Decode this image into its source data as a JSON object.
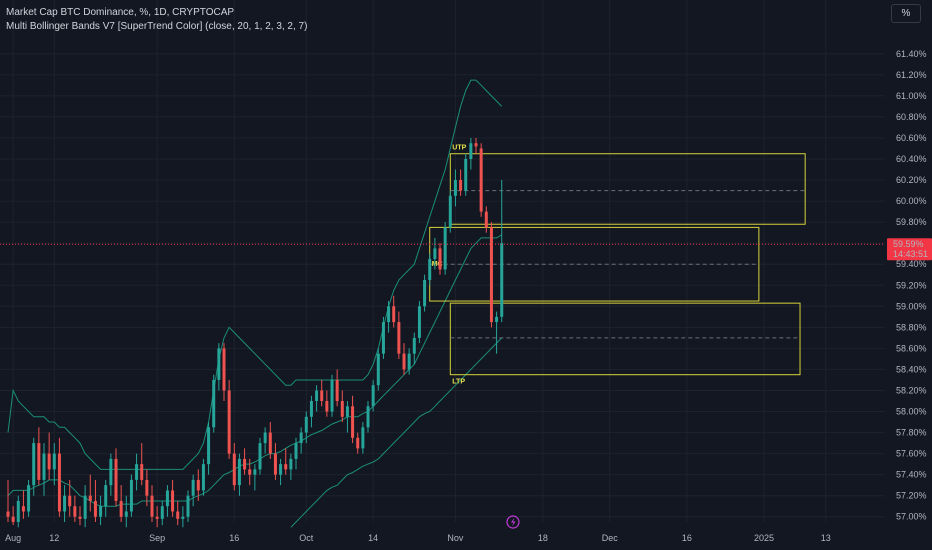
{
  "header": {
    "title": "Market Cap BTC Dominance, %, 1D, CRYPTOCAP",
    "indicator": "Multi Bollinger Bands V7 [SuperTrend Color] (close, 20, 1, 2, 3, 2, 7)",
    "scale_button": "%"
  },
  "colors": {
    "background": "#131722",
    "up": "#26a69a",
    "down": "#ef5350",
    "band": "#1b8f78",
    "zone": "#d8d33a",
    "price_marker": "#f23645",
    "axis_text": "#b2b5be"
  },
  "chart_data": {
    "type": "candlestick",
    "symbol": "Market Cap BTC Dominance",
    "interval": "1D",
    "ylim": [
      56.95,
      61.55
    ],
    "y_ticks": [
      "61.40%",
      "61.20%",
      "61.00%",
      "60.80%",
      "60.60%",
      "60.40%",
      "60.20%",
      "60.00%",
      "59.80%",
      "59.60%",
      "59.40%",
      "59.20%",
      "59.00%",
      "58.80%",
      "58.60%",
      "58.40%",
      "58.20%",
      "58.00%",
      "57.80%",
      "57.60%",
      "57.40%",
      "57.20%",
      "57.00%"
    ],
    "x_ticks": [
      {
        "label": "Aug",
        "i": 1
      },
      {
        "label": "12",
        "i": 9
      },
      {
        "label": "Sep",
        "i": 29
      },
      {
        "label": "16",
        "i": 44
      },
      {
        "label": "Oct",
        "i": 58
      },
      {
        "label": "14",
        "i": 71
      },
      {
        "label": "Nov",
        "i": 87
      },
      {
        "label": "18",
        "i": 104
      },
      {
        "label": "Dec",
        "i": 117
      },
      {
        "label": "16",
        "i": 132
      },
      {
        "label": "2025",
        "i": 147
      },
      {
        "label": "13",
        "i": 159
      }
    ],
    "candles": [
      [
        57.05,
        57.35,
        56.95,
        57.0
      ],
      [
        57.0,
        57.1,
        56.92,
        56.95
      ],
      [
        56.95,
        57.2,
        56.9,
        57.15
      ],
      [
        57.1,
        57.25,
        56.98,
        57.05
      ],
      [
        57.05,
        57.35,
        57.0,
        57.3
      ],
      [
        57.3,
        57.75,
        57.2,
        57.7
      ],
      [
        57.7,
        57.85,
        57.3,
        57.35
      ],
      [
        57.35,
        57.7,
        57.2,
        57.6
      ],
      [
        57.6,
        57.8,
        57.35,
        57.45
      ],
      [
        57.45,
        57.7,
        57.3,
        57.6
      ],
      [
        57.6,
        57.75,
        57.0,
        57.05
      ],
      [
        57.05,
        57.3,
        56.95,
        57.2
      ],
      [
        57.2,
        57.35,
        57.0,
        57.1
      ],
      [
        57.1,
        57.2,
        56.95,
        57.0
      ],
      [
        57.0,
        57.1,
        56.92,
        56.98
      ],
      [
        56.98,
        57.3,
        56.9,
        57.2
      ],
      [
        57.2,
        57.4,
        57.05,
        57.15
      ],
      [
        57.15,
        57.35,
        56.95,
        57.0
      ],
      [
        57.0,
        57.2,
        56.92,
        57.1
      ],
      [
        57.1,
        57.35,
        57.0,
        57.3
      ],
      [
        57.3,
        57.6,
        57.2,
        57.55
      ],
      [
        57.55,
        57.65,
        57.1,
        57.15
      ],
      [
        57.15,
        57.3,
        56.95,
        57.0
      ],
      [
        57.0,
        57.2,
        56.9,
        57.05
      ],
      [
        57.05,
        57.4,
        57.0,
        57.35
      ],
      [
        57.35,
        57.6,
        57.25,
        57.5
      ],
      [
        57.5,
        57.7,
        57.3,
        57.35
      ],
      [
        57.35,
        57.45,
        57.1,
        57.2
      ],
      [
        57.2,
        57.3,
        56.95,
        57.0
      ],
      [
        57.0,
        57.1,
        56.9,
        56.98
      ],
      [
        56.98,
        57.15,
        56.92,
        57.1
      ],
      [
        57.1,
        57.3,
        57.0,
        57.25
      ],
      [
        57.25,
        57.35,
        57.0,
        57.05
      ],
      [
        57.05,
        57.15,
        56.92,
        56.98
      ],
      [
        56.98,
        57.1,
        56.9,
        57.0
      ],
      [
        57.0,
        57.25,
        56.95,
        57.2
      ],
      [
        57.2,
        57.4,
        57.1,
        57.35
      ],
      [
        57.35,
        57.45,
        57.15,
        57.25
      ],
      [
        57.25,
        57.55,
        57.2,
        57.5
      ],
      [
        57.5,
        57.9,
        57.4,
        57.85
      ],
      [
        57.85,
        58.35,
        57.8,
        58.3
      ],
      [
        58.3,
        58.65,
        58.2,
        58.6
      ],
      [
        58.6,
        58.65,
        58.1,
        58.2
      ],
      [
        58.2,
        58.3,
        57.55,
        57.6
      ],
      [
        57.6,
        57.7,
        57.25,
        57.3
      ],
      [
        57.3,
        57.6,
        57.2,
        57.55
      ],
      [
        57.55,
        57.65,
        57.4,
        57.45
      ],
      [
        57.45,
        57.55,
        57.3,
        57.4
      ],
      [
        57.4,
        57.5,
        57.25,
        57.45
      ],
      [
        57.45,
        57.75,
        57.4,
        57.7
      ],
      [
        57.7,
        57.85,
        57.6,
        57.8
      ],
      [
        57.8,
        57.9,
        57.55,
        57.6
      ],
      [
        57.6,
        57.7,
        57.35,
        57.4
      ],
      [
        57.4,
        57.55,
        57.3,
        57.5
      ],
      [
        57.5,
        57.65,
        57.4,
        57.45
      ],
      [
        57.45,
        57.6,
        57.35,
        57.55
      ],
      [
        57.55,
        57.75,
        57.45,
        57.7
      ],
      [
        57.7,
        57.85,
        57.6,
        57.8
      ],
      [
        57.8,
        58.0,
        57.7,
        57.95
      ],
      [
        57.95,
        58.15,
        57.85,
        58.1
      ],
      [
        58.1,
        58.25,
        58.0,
        58.2
      ],
      [
        58.2,
        58.3,
        58.05,
        58.1
      ],
      [
        58.1,
        58.2,
        57.95,
        58.0
      ],
      [
        58.0,
        58.35,
        57.95,
        58.3
      ],
      [
        58.3,
        58.4,
        58.05,
        58.1
      ],
      [
        58.1,
        58.2,
        57.9,
        57.95
      ],
      [
        57.95,
        58.1,
        57.8,
        58.05
      ],
      [
        58.05,
        58.15,
        57.7,
        57.75
      ],
      [
        57.75,
        57.8,
        57.6,
        57.65
      ],
      [
        57.65,
        57.9,
        57.6,
        57.85
      ],
      [
        57.85,
        58.1,
        57.8,
        58.05
      ],
      [
        58.05,
        58.3,
        58.0,
        58.25
      ],
      [
        58.25,
        58.6,
        58.2,
        58.55
      ],
      [
        58.55,
        58.9,
        58.5,
        58.85
      ],
      [
        58.85,
        59.05,
        58.75,
        59.0
      ],
      [
        59.0,
        59.1,
        58.8,
        58.85
      ],
      [
        58.85,
        58.95,
        58.5,
        58.55
      ],
      [
        58.55,
        58.65,
        58.35,
        58.4
      ],
      [
        58.4,
        58.6,
        58.35,
        58.55
      ],
      [
        58.55,
        58.75,
        58.45,
        58.7
      ],
      [
        58.7,
        59.05,
        58.65,
        59.0
      ],
      [
        59.0,
        59.3,
        58.95,
        59.25
      ],
      [
        59.25,
        59.5,
        59.2,
        59.45
      ],
      [
        59.45,
        59.65,
        59.35,
        59.55
      ],
      [
        59.55,
        59.6,
        59.3,
        59.35
      ],
      [
        59.35,
        59.8,
        59.3,
        59.75
      ],
      [
        59.75,
        60.1,
        59.7,
        60.05
      ],
      [
        60.05,
        60.3,
        59.95,
        60.2
      ],
      [
        60.2,
        60.3,
        60.05,
        60.1
      ],
      [
        60.1,
        60.45,
        60.05,
        60.4
      ],
      [
        60.4,
        60.6,
        60.3,
        60.55
      ],
      [
        60.55,
        60.6,
        60.45,
        60.52
      ],
      [
        60.5,
        60.55,
        59.85,
        59.9
      ],
      [
        59.9,
        59.95,
        59.7,
        59.75
      ],
      [
        59.75,
        59.8,
        58.8,
        58.85
      ],
      [
        58.85,
        58.95,
        58.55,
        58.9
      ],
      [
        58.9,
        60.2,
        58.85,
        59.6
      ]
    ],
    "bands": {
      "upper": [
        57.8,
        58.2,
        58.1,
        58.05,
        58.0,
        57.95,
        57.95,
        57.95,
        57.9,
        57.9,
        57.85,
        57.85,
        57.8,
        57.75,
        57.7,
        57.6,
        57.55,
        57.5,
        57.45,
        57.45,
        57.45,
        57.45,
        57.45,
        57.45,
        57.45,
        57.45,
        57.45,
        57.45,
        57.45,
        57.45,
        57.45,
        57.45,
        57.45,
        57.45,
        57.45,
        57.5,
        57.55,
        57.6,
        57.7,
        57.9,
        58.2,
        58.5,
        58.7,
        58.8,
        58.75,
        58.7,
        58.65,
        58.6,
        58.55,
        58.5,
        58.45,
        58.4,
        58.35,
        58.3,
        58.25,
        58.25,
        58.3,
        58.3,
        58.3,
        58.3,
        58.3,
        58.3,
        58.3,
        58.3,
        58.3,
        58.3,
        58.3,
        58.3,
        58.3,
        58.3,
        58.35,
        58.45,
        58.6,
        58.8,
        59.0,
        59.15,
        59.25,
        59.3,
        59.35,
        59.4,
        59.55,
        59.7,
        59.85,
        60.0,
        60.15,
        60.3,
        60.5,
        60.7,
        60.9,
        61.05,
        61.15,
        61.15,
        61.1,
        61.05,
        61.0,
        60.95,
        60.9
      ],
      "middle": [
        57.2,
        57.25,
        57.25,
        57.25,
        57.25,
        57.28,
        57.3,
        57.32,
        57.35,
        57.35,
        57.35,
        57.32,
        57.3,
        57.25,
        57.2,
        57.18,
        57.15,
        57.12,
        57.1,
        57.1,
        57.1,
        57.1,
        57.12,
        57.12,
        57.12,
        57.12,
        57.15,
        57.15,
        57.15,
        57.15,
        57.15,
        57.15,
        57.15,
        57.15,
        57.15,
        57.15,
        57.18,
        57.2,
        57.22,
        57.25,
        57.3,
        57.35,
        57.4,
        57.42,
        57.45,
        57.48,
        57.5,
        57.5,
        57.52,
        57.55,
        57.58,
        57.6,
        57.6,
        57.62,
        57.65,
        57.68,
        57.7,
        57.72,
        57.75,
        57.78,
        57.8,
        57.82,
        57.85,
        57.88,
        57.9,
        57.92,
        57.95,
        57.95,
        57.95,
        57.98,
        58.0,
        58.05,
        58.1,
        58.15,
        58.2,
        58.25,
        58.3,
        58.35,
        58.4,
        58.45,
        58.55,
        58.65,
        58.75,
        58.85,
        58.95,
        59.05,
        59.15,
        59.25,
        59.35,
        59.45,
        59.55,
        59.6,
        59.65,
        59.65,
        59.65,
        59.65,
        59.68
      ],
      "lower": [
        null,
        null,
        null,
        null,
        null,
        null,
        null,
        null,
        null,
        null,
        null,
        null,
        null,
        null,
        null,
        null,
        null,
        null,
        null,
        null,
        null,
        null,
        null,
        null,
        null,
        null,
        null,
        null,
        null,
        null,
        null,
        null,
        null,
        null,
        null,
        null,
        null,
        null,
        null,
        null,
        null,
        null,
        null,
        null,
        null,
        null,
        null,
        null,
        null,
        null,
        null,
        null,
        null,
        null,
        null,
        56.9,
        56.95,
        57.0,
        57.05,
        57.1,
        57.15,
        57.2,
        57.25,
        57.28,
        57.3,
        57.35,
        57.4,
        57.42,
        57.45,
        57.48,
        57.5,
        57.52,
        57.55,
        57.6,
        57.65,
        57.7,
        57.75,
        57.8,
        57.85,
        57.9,
        57.95,
        57.98,
        58.0,
        58.05,
        58.1,
        58.15,
        58.2,
        58.25,
        58.3,
        58.35,
        58.4,
        58.45,
        58.5,
        58.55,
        58.6,
        58.65,
        58.7
      ]
    },
    "zones": [
      {
        "label": "UTP",
        "top": 60.45,
        "bottom": 59.78,
        "i_start": 86,
        "i_end": 155,
        "dashed": 60.1
      },
      {
        "label": "MC",
        "top": 59.75,
        "bottom": 59.05,
        "i_start": 82,
        "i_end": 146,
        "dashed": 59.4
      },
      {
        "label": "LTP",
        "top": 59.03,
        "bottom": 58.35,
        "i_start": 86,
        "i_end": 154,
        "dashed": 58.7
      }
    ],
    "current_price": {
      "value": 59.59,
      "label": "59.59%",
      "countdown": "14:43:51"
    }
  }
}
